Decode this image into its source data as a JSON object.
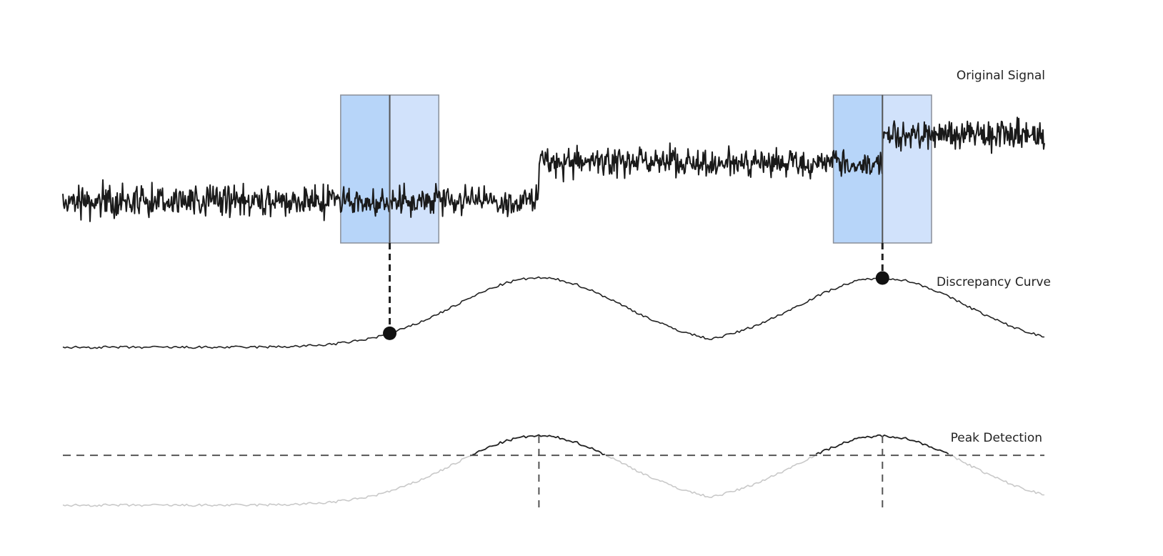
{
  "labels": {
    "original_signal": "Original Signal",
    "discrepancy_curve": "Discrepancy Curve",
    "peak_detection": "Peak Detection"
  },
  "colors": {
    "signal": "#1a1a1a",
    "window_left": "#b7d5f9",
    "window_right": "#d1e2fb",
    "window_border": "#8a8f99",
    "curve": "#222222",
    "curve_faded": "#c9c9c9",
    "threshold": "#555555"
  },
  "diagram": {
    "signal_segments": [
      {
        "from": 0.0,
        "to": 0.485,
        "level": 0.0
      },
      {
        "from": 0.485,
        "to": 0.835,
        "level": 1.0
      },
      {
        "from": 0.835,
        "to": 1.0,
        "level": 1.65
      }
    ],
    "change_points": [
      0.485,
      0.835
    ],
    "windows": [
      {
        "split": 0.333,
        "half_width": 0.05
      },
      {
        "split": 0.835,
        "half_width": 0.05
      }
    ],
    "markers": [
      0.333,
      0.835
    ],
    "threshold": 0.72
  }
}
